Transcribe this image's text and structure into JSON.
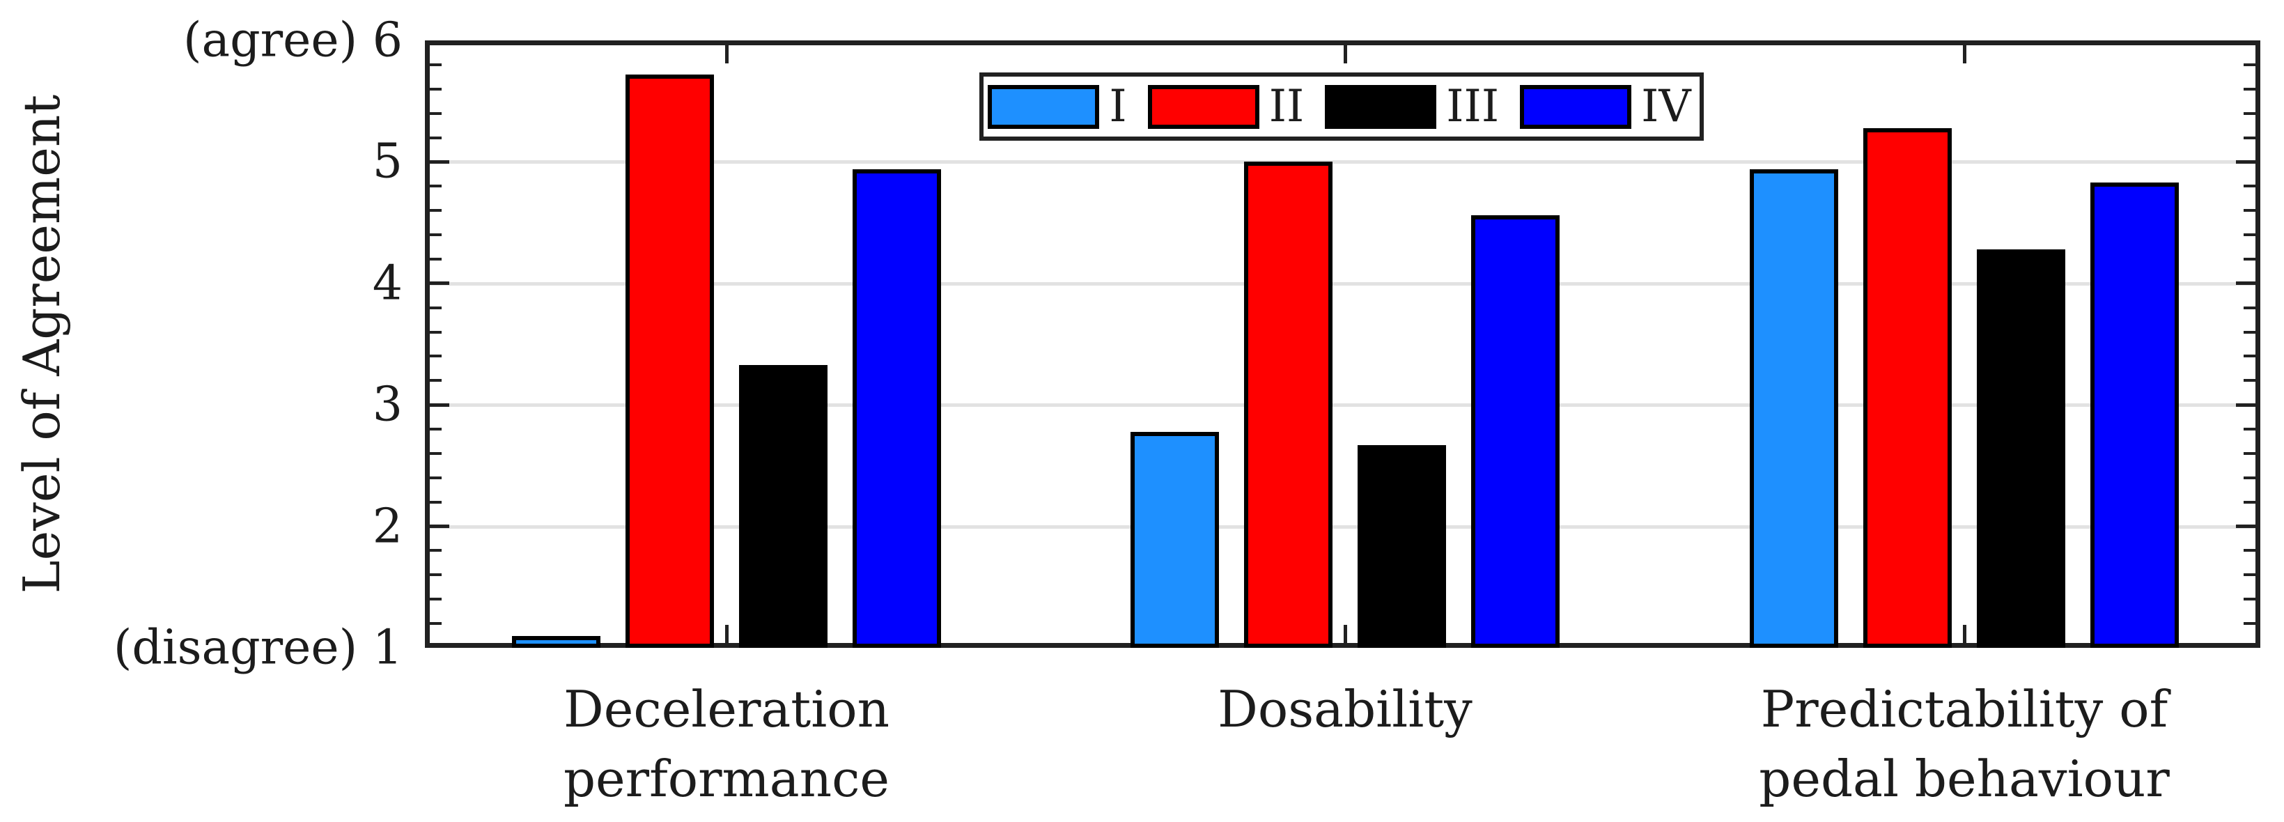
{
  "figure": {
    "background": "#ffffff",
    "axis_color": "#212121",
    "grid_color": "#e2e2e2",
    "text_color": "#1c1c1c"
  },
  "y_axis": {
    "title": "Level of Agreement",
    "tick_labels": [
      {
        "value": 6,
        "label": "(agree) 6"
      },
      {
        "value": 5,
        "label": "5"
      },
      {
        "value": 4,
        "label": "4"
      },
      {
        "value": 3,
        "label": "3"
      },
      {
        "value": 2,
        "label": "2"
      },
      {
        "value": 1,
        "label": "(disagree) 1"
      }
    ]
  },
  "legend": {
    "entries": [
      {
        "label": "I",
        "color": "#1E90FF"
      },
      {
        "label": "II",
        "color": "#FF0000"
      },
      {
        "label": "III",
        "color": "#000000"
      },
      {
        "label": "IV",
        "color": "#0000FF"
      }
    ]
  },
  "chart_data": {
    "type": "bar",
    "title": "",
    "xlabel": "",
    "ylabel": "Level of Agreement",
    "ylim": [
      1,
      6
    ],
    "yticks_major": [
      1,
      2,
      3,
      4,
      5,
      6
    ],
    "ytick_minor_step": 0.2,
    "grid": "horizontal major gridlines at 2,3,4,5",
    "legend_position": "north (top center, inside plot)",
    "categories": [
      {
        "id": "deceleration-performance",
        "label_lines": [
          "Deceleration",
          "performance"
        ]
      },
      {
        "id": "dosability",
        "label_lines": [
          "Dosability"
        ]
      },
      {
        "id": "predictability",
        "label_lines": [
          "Predictability of",
          "pedal behaviour"
        ]
      }
    ],
    "series": [
      {
        "name": "I",
        "color": "#1E90FF",
        "values": [
          1.1,
          2.78,
          4.94
        ]
      },
      {
        "name": "II",
        "color": "#FF0000",
        "values": [
          5.72,
          5.0,
          5.28
        ]
      },
      {
        "name": "III",
        "color": "#000000",
        "values": [
          3.33,
          2.67,
          4.28
        ]
      },
      {
        "name": "IV",
        "color": "#0000FF",
        "values": [
          4.94,
          4.56,
          4.83
        ]
      }
    ],
    "y_axis_endpoint_annotations": {
      "top": "(agree)",
      "bottom": "(disagree)"
    }
  }
}
